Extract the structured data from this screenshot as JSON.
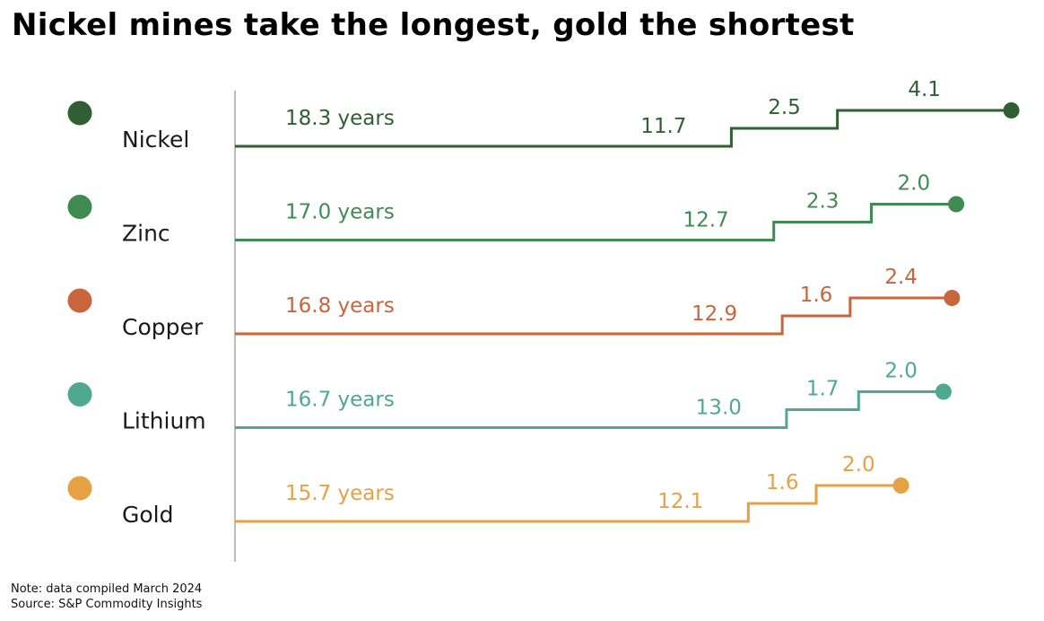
{
  "title": "Nickel mines take the longest, gold the shortest",
  "note": "Note: data compiled March 2024",
  "source": "Source: S&P Commodity Insights",
  "chart_data": {
    "type": "step",
    "total_unit": "years",
    "series": [
      {
        "name": "Nickel",
        "total": 18.3,
        "total_label": "18.3 years",
        "segments": [
          11.7,
          2.5,
          4.1
        ],
        "segment_labels": [
          "11.7",
          "2.5",
          "4.1"
        ],
        "color": "#2f5f33"
      },
      {
        "name": "Zinc",
        "total": 17.0,
        "total_label": "17.0 years",
        "segments": [
          12.7,
          2.3,
          2.0
        ],
        "segment_labels": [
          "12.7",
          "2.3",
          "2.0"
        ],
        "color": "#3f8b52"
      },
      {
        "name": "Copper",
        "total": 16.8,
        "total_label": "16.8 years",
        "segments": [
          12.9,
          1.6,
          2.4
        ],
        "segment_labels": [
          "12.9",
          "1.6",
          "2.4"
        ],
        "color": "#c8653a"
      },
      {
        "name": "Lithium",
        "total": 16.7,
        "total_label": "16.7 years",
        "segments": [
          13.0,
          1.7,
          2.0
        ],
        "segment_labels": [
          "13.0",
          "1.7",
          "2.0"
        ],
        "color": "#4fa892"
      },
      {
        "name": "Gold",
        "total": 15.7,
        "total_label": "15.7 years",
        "segments": [
          12.1,
          1.6,
          2.0
        ],
        "segment_labels": [
          "12.1",
          "1.6",
          "2.0"
        ],
        "color": "#e6a144"
      }
    ]
  }
}
